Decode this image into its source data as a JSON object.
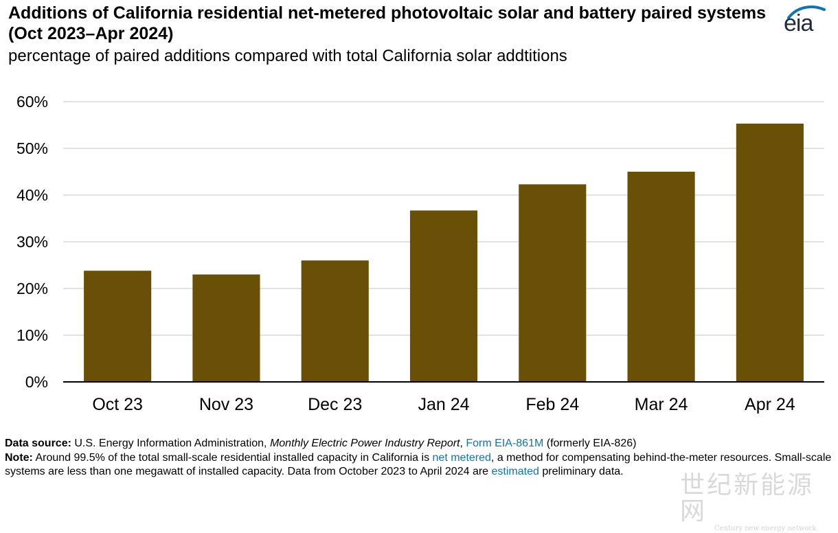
{
  "header": {
    "title": "Additions of California residential net-metered photovoltaic solar and battery paired systems (Oct 2023–Apr 2024)",
    "subtitle": "percentage of paired additions compared with total California solar addtitions",
    "logo_text": "eia"
  },
  "chart_data": {
    "type": "bar",
    "title": "Additions of California residential net-metered photovoltaic solar and battery paired systems (Oct 2023–Apr 2024)",
    "subtitle": "percentage of paired additions compared with total California solar addtitions",
    "categories": [
      "Oct 23",
      "Nov 23",
      "Dec 23",
      "Jan 24",
      "Feb 24",
      "Mar 24",
      "Apr 24"
    ],
    "values": [
      23.8,
      23.0,
      26.0,
      36.7,
      42.3,
      45.0,
      55.3
    ],
    "ylim": [
      0,
      60
    ],
    "yticks": [
      0,
      10,
      20,
      30,
      40,
      50,
      60
    ],
    "ytick_labels": [
      "0%",
      "10%",
      "20%",
      "30%",
      "40%",
      "50%",
      "60%"
    ],
    "xlabel": "",
    "ylabel": "",
    "grid": true,
    "bar_color": "#6a4f06",
    "grid_color": "#d9d9d9",
    "axis_color": "#000000"
  },
  "footer": {
    "source_label": "Data source:",
    "source_text": " U.S. Energy Information Administration, ",
    "source_report": "Monthly Electric Power Industry Report",
    "source_sep": ", ",
    "source_link": "Form EIA-861M",
    "source_tail": " (formerly EIA-826)",
    "note_label": "Note:",
    "note_text_1": " Around 99.5% of the total small-scale residential installed capacity in California is ",
    "note_link_1": "net metered",
    "note_text_2": ", a method for compensating behind-the-meter resources. Small-scale systems are less than one megawatt of installed capacity. Data from October 2023 to April 2024 are ",
    "note_link_2": "estimated",
    "note_text_3": " preliminary data."
  },
  "watermark": {
    "chinese": "世纪新能源网",
    "english": "Century new energy network"
  }
}
